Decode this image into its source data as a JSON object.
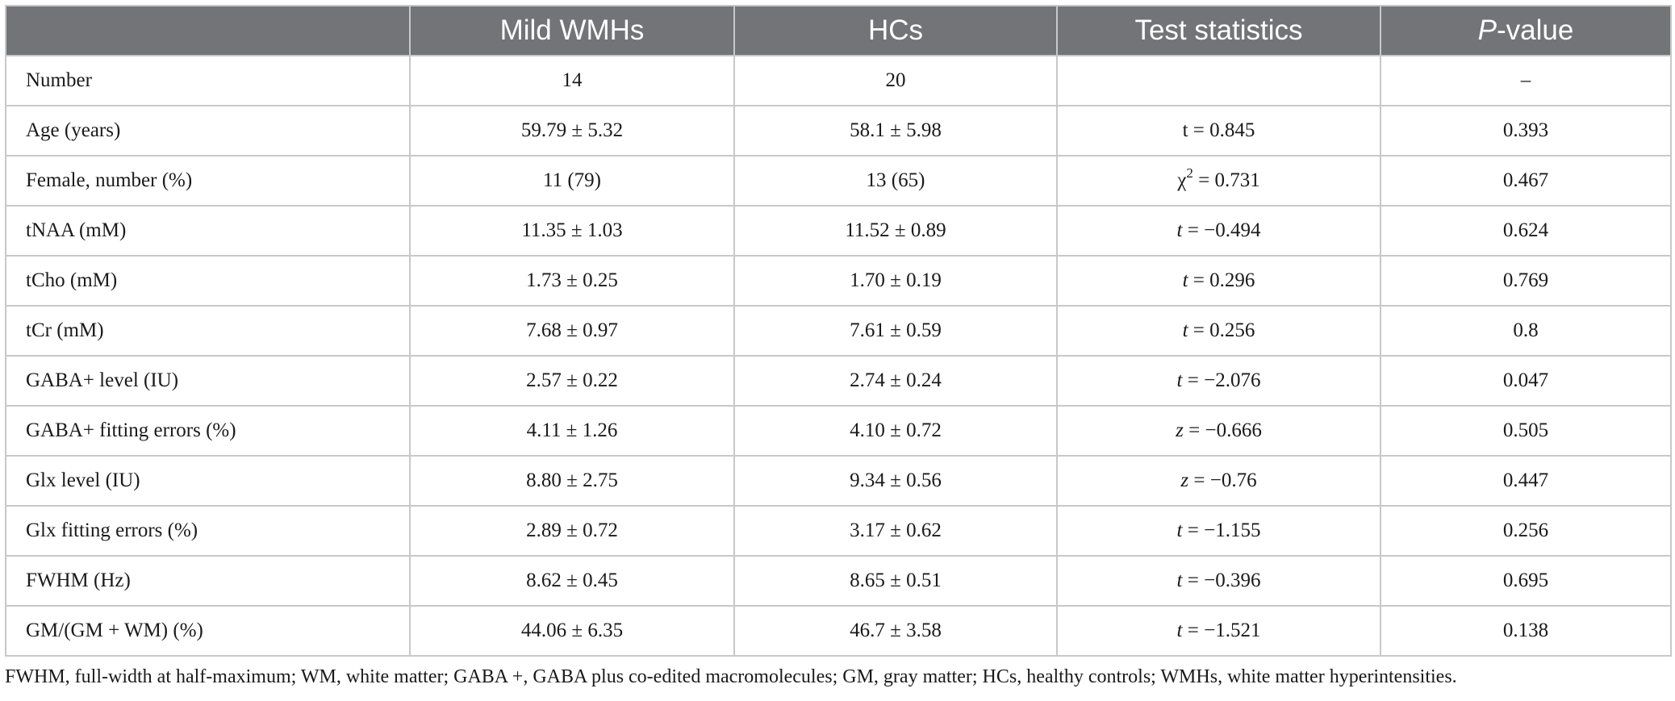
{
  "table": {
    "columns": [
      {
        "label": "",
        "italic_prefix": "",
        "suffix": ""
      },
      {
        "label": "Mild WMHs",
        "italic_prefix": "",
        "suffix": ""
      },
      {
        "label": "HCs",
        "italic_prefix": "",
        "suffix": ""
      },
      {
        "label": "Test statistics",
        "italic_prefix": "",
        "suffix": ""
      },
      {
        "label": "",
        "italic_prefix": "P",
        "suffix": "-value"
      }
    ],
    "rows": [
      {
        "label": "Number",
        "mild": "14",
        "hcs": "20",
        "stat_symbol": "",
        "stat_sup": "",
        "stat_value": "",
        "p": "–",
        "symbol_italic": true
      },
      {
        "label": "Age (years)",
        "mild": "59.79 ± 5.32",
        "hcs": "58.1 ± 5.98",
        "stat_symbol": "t",
        "stat_sup": "",
        "stat_value": " = 0.845",
        "p": "0.393",
        "symbol_italic": false
      },
      {
        "label": "Female, number (%)",
        "mild": "11 (79)",
        "hcs": "13 (65)",
        "stat_symbol": "χ",
        "stat_sup": "2",
        "stat_value": " = 0.731",
        "p": "0.467",
        "symbol_italic": false
      },
      {
        "label": "tNAA (mM)",
        "mild": "11.35 ± 1.03",
        "hcs": "11.52 ± 0.89",
        "stat_symbol": "t",
        "stat_sup": "",
        "stat_value": " = −0.494",
        "p": "0.624",
        "symbol_italic": true
      },
      {
        "label": "tCho (mM)",
        "mild": "1.73 ± 0.25",
        "hcs": "1.70 ± 0.19",
        "stat_symbol": "t",
        "stat_sup": "",
        "stat_value": " = 0.296",
        "p": "0.769",
        "symbol_italic": true
      },
      {
        "label": "tCr (mM)",
        "mild": "7.68 ± 0.97",
        "hcs": "7.61 ± 0.59",
        "stat_symbol": "t",
        "stat_sup": "",
        "stat_value": " = 0.256",
        "p": "0.8",
        "symbol_italic": true
      },
      {
        "label": "GABA+ level (IU)",
        "mild": "2.57 ± 0.22",
        "hcs": "2.74 ± 0.24",
        "stat_symbol": "t",
        "stat_sup": "",
        "stat_value": " = −2.076",
        "p": "0.047",
        "symbol_italic": true
      },
      {
        "label": "GABA+ fitting errors (%)",
        "mild": "4.11 ± 1.26",
        "hcs": "4.10 ± 0.72",
        "stat_symbol": "z",
        "stat_sup": "",
        "stat_value": " = −0.666",
        "p": "0.505",
        "symbol_italic": true
      },
      {
        "label": "Glx level (IU)",
        "mild": "8.80 ± 2.75",
        "hcs": "9.34 ± 0.56",
        "stat_symbol": "z",
        "stat_sup": "",
        "stat_value": " = −0.76",
        "p": "0.447",
        "symbol_italic": true
      },
      {
        "label": "Glx fitting errors (%)",
        "mild": "2.89 ± 0.72",
        "hcs": "3.17 ± 0.62",
        "stat_symbol": "t",
        "stat_sup": "",
        "stat_value": " = −1.155",
        "p": "0.256",
        "symbol_italic": true
      },
      {
        "label": "FWHM (Hz)",
        "mild": "8.62 ± 0.45",
        "hcs": "8.65 ± 0.51",
        "stat_symbol": "t",
        "stat_sup": "",
        "stat_value": " = −0.396",
        "p": "0.695",
        "symbol_italic": true
      },
      {
        "label": "GM/(GM + WM) (%)",
        "mild": "44.06 ± 6.35",
        "hcs": "46.7 ± 3.58",
        "stat_symbol": "t",
        "stat_sup": "",
        "stat_value": " = −1.521",
        "p": "0.138",
        "symbol_italic": true
      }
    ]
  },
  "footnote": "FWHM, full-width at half-maximum; WM, white matter; GABA +, GABA plus co-edited macromolecules; GM, gray matter; HCs, healthy controls; WMHs, white matter hyperintensities.",
  "colors": {
    "header_bg": "#737478",
    "header_text": "#ffffff",
    "grid_line": "#c8c8c8",
    "body_text": "#1a1a1a"
  }
}
